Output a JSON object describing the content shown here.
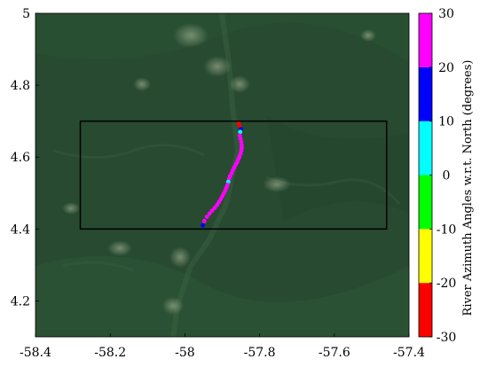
{
  "chart_data": {
    "type": "scatter",
    "title": "",
    "background": "satellite imagery (dense forest)",
    "xlim": [
      -58.4,
      -57.4
    ],
    "ylim": [
      4.1,
      5.0
    ],
    "x_ticks": [
      -58.4,
      -58.2,
      -58,
      -57.8,
      -57.6,
      -57.4
    ],
    "x_tick_labels": [
      "-58.4",
      "-58.2",
      "-58",
      "-57.8",
      "-57.6",
      "-57.4"
    ],
    "y_ticks": [
      4.2,
      4.4,
      4.6,
      4.8,
      5.0
    ],
    "y_tick_labels": [
      "4.2",
      "4.4",
      "4.6",
      "4.8",
      "5"
    ],
    "grid": false,
    "study_box": {
      "x": [
        -58.28,
        -57.46
      ],
      "y": [
        4.4,
        4.7
      ]
    },
    "series": [
      {
        "x": [
          -57.856,
          -57.853,
          -57.85,
          -57.852,
          -57.853,
          -57.851,
          -57.849,
          -57.848,
          -57.848,
          -57.849,
          -57.851,
          -57.854,
          -57.857,
          -57.86,
          -57.864,
          -57.868,
          -57.872,
          -57.875,
          -57.879,
          -57.882,
          -57.884,
          -57.886,
          -57.889,
          -57.892,
          -57.896,
          -57.9,
          -57.904,
          -57.909,
          -57.914,
          -57.92,
          -57.927,
          -57.934,
          -57.941,
          -57.948,
          -57.952
        ],
        "y": [
          4.693,
          4.686,
          4.678,
          4.67,
          4.66,
          4.651,
          4.642,
          4.633,
          4.625,
          4.617,
          4.609,
          4.601,
          4.594,
          4.586,
          4.579,
          4.571,
          4.563,
          4.555,
          4.547,
          4.539,
          4.531,
          4.523,
          4.515,
          4.507,
          4.499,
          4.491,
          4.483,
          4.475,
          4.467,
          4.459,
          4.451,
          4.443,
          4.434,
          4.422,
          4.41
        ],
        "values": [
          -20,
          -25,
          15,
          5,
          25,
          25,
          25,
          25,
          25,
          28,
          25,
          22,
          25,
          25,
          25,
          28,
          25,
          25,
          25,
          25,
          2,
          25,
          25,
          25,
          25,
          25,
          25,
          25,
          25,
          28,
          25,
          25,
          25,
          25,
          15
        ]
      }
    ],
    "colorbar": {
      "label": "River Azimuth Angles w.r.t. North (degrees)",
      "range": [
        -30,
        30
      ],
      "ticks": [
        -30,
        -20,
        -10,
        0,
        10,
        20,
        30
      ],
      "tick_labels": [
        "-30",
        "-20",
        "-10",
        "0",
        "10",
        "20",
        "30"
      ],
      "bands": [
        {
          "range": [
            -30,
            -20
          ],
          "color": "#ff0000"
        },
        {
          "range": [
            -20,
            -10
          ],
          "color": "#ffff00"
        },
        {
          "range": [
            -10,
            0
          ],
          "color": "#00ff00"
        },
        {
          "range": [
            0,
            10
          ],
          "color": "#00ffff"
        },
        {
          "range": [
            10,
            20
          ],
          "color": "#0000ff"
        },
        {
          "range": [
            20,
            30
          ],
          "color": "#ff00ff"
        }
      ]
    }
  }
}
